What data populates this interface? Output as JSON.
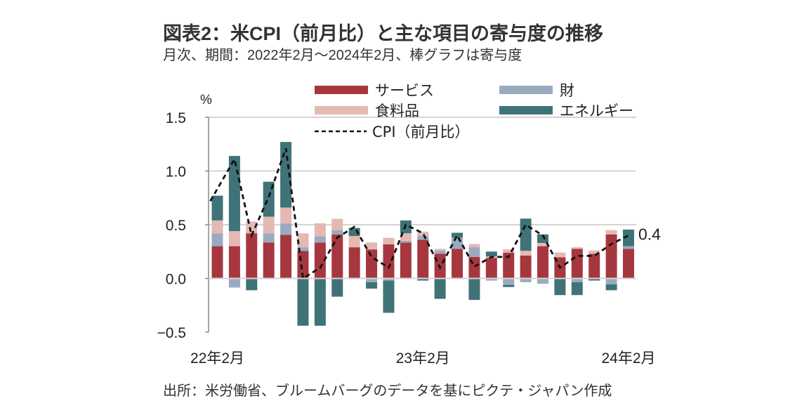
{
  "title": "図表2：米CPI（前月比）と主な項目の寄与度の推移",
  "subtitle": "月次、期間：2022年2月～2024年2月、棒グラフは寄与度",
  "source": "出所：米労働省、ブルームバーグのデータを基にピクテ・ジャパン作成",
  "colors": {
    "services": "#a6373f",
    "goods": "#9aabc0",
    "food": "#e4b9b3",
    "energy": "#3f7378",
    "cpi": "#111111",
    "grid": "#d4d4d4",
    "axis": "#888888"
  },
  "chart_data": {
    "type": "bar",
    "stacked": true,
    "title": "図表2：米CPI（前月比）と主な項目の寄与度の推移",
    "ylabel": "%",
    "ylim": [
      -0.5,
      1.5
    ],
    "yticks": [
      "1.5",
      "1.0",
      "0.5",
      "0.0",
      "−0.5"
    ],
    "ytick_values": [
      1.5,
      1.0,
      0.5,
      0.0,
      -0.5
    ],
    "grid": true,
    "legend_position": "top",
    "categories": [
      "2022-02",
      "2022-03",
      "2022-04",
      "2022-05",
      "2022-06",
      "2022-07",
      "2022-08",
      "2022-09",
      "2022-10",
      "2022-11",
      "2022-12",
      "2023-01",
      "2023-02",
      "2023-03",
      "2023-04",
      "2023-05",
      "2023-06",
      "2023-07",
      "2023-08",
      "2023-09",
      "2023-10",
      "2023-11",
      "2023-12",
      "2024-01",
      "2024-02"
    ],
    "xtick_labels": [
      {
        "index": 0,
        "label": "22年2月"
      },
      {
        "index": 12,
        "label": "23年2月"
      },
      {
        "index": 24,
        "label": "24年2月"
      }
    ],
    "series": [
      {
        "key": "services",
        "name": "サービス",
        "values": [
          0.3,
          0.3,
          0.42,
          0.335,
          0.405,
          0.255,
          0.333,
          0.41,
          0.29,
          0.27,
          0.318,
          0.333,
          0.36,
          0.23,
          0.275,
          0.2,
          0.19,
          0.24,
          0.213,
          0.3,
          0.196,
          0.275,
          0.23,
          0.41,
          0.275
        ]
      },
      {
        "key": "goods",
        "name": "財",
        "values": [
          0.12,
          -0.085,
          0.0,
          0.085,
          0.105,
          0.035,
          0.06,
          0.04,
          0.0,
          -0.035,
          -0.02,
          0.017,
          0.035,
          0.03,
          0.105,
          0.09,
          -0.02,
          -0.06,
          -0.035,
          -0.05,
          0.0,
          -0.035,
          0.0,
          -0.055,
          0.025
        ]
      },
      {
        "key": "food",
        "name": "食料品",
        "values": [
          0.12,
          0.14,
          0.11,
          0.155,
          0.15,
          0.13,
          0.12,
          0.105,
          0.105,
          0.065,
          0.06,
          0.07,
          0.04,
          0.015,
          0.0,
          0.03,
          0.015,
          0.03,
          0.044,
          0.03,
          0.045,
          0.015,
          0.03,
          0.04,
          0.0
        ]
      },
      {
        "key": "energy",
        "name": "エネルギー",
        "values": [
          0.23,
          0.7,
          -0.11,
          0.325,
          0.61,
          -0.44,
          -0.44,
          -0.17,
          0.075,
          -0.06,
          -0.3,
          0.12,
          -0.02,
          -0.19,
          0.045,
          -0.2,
          0.045,
          -0.02,
          0.3,
          0.08,
          -0.155,
          -0.12,
          -0.02,
          -0.055,
          0.155
        ]
      }
    ],
    "line": {
      "key": "cpi",
      "name": "CPI（前月比）",
      "style": "dashed",
      "values": [
        0.72,
        1.11,
        0.4,
        0.76,
        1.21,
        0.0,
        0.1,
        0.38,
        0.48,
        0.2,
        0.1,
        0.5,
        0.42,
        0.1,
        0.4,
        0.11,
        0.2,
        0.2,
        0.5,
        0.4,
        0.1,
        0.21,
        0.21,
        0.32,
        0.4
      ]
    },
    "annotations": [
      {
        "index": 24,
        "text": "0.4"
      }
    ]
  }
}
